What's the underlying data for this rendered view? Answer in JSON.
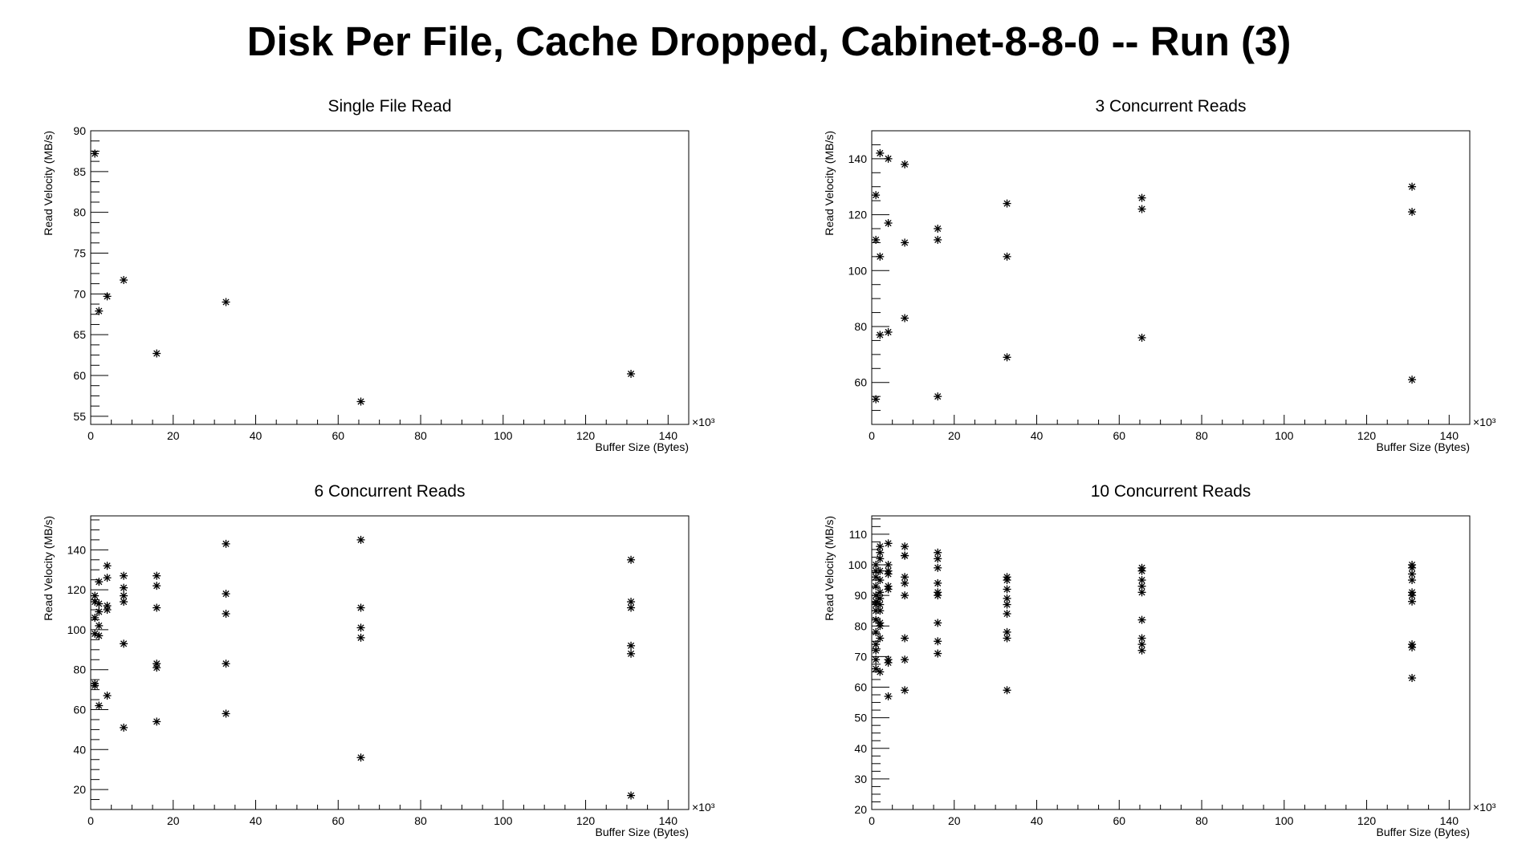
{
  "page": {
    "title": "Disk Per File, Cache Dropped, Cabinet-8-8-0 -- Run (3)"
  },
  "chart_data": [
    {
      "type": "scatter",
      "title": "Single File Read",
      "xlabel": "Buffer Size (Bytes)",
      "ylabel": "Read Velocity (MB/s)",
      "x_multiplier_label": "×10³",
      "xlim": [
        0,
        145
      ],
      "ylim": [
        54,
        90
      ],
      "x_ticks": [
        0,
        20,
        40,
        60,
        80,
        100,
        120,
        140
      ],
      "y_ticks": [
        55,
        60,
        65,
        70,
        75,
        80,
        85,
        90
      ],
      "grid": false,
      "marker": "asterisk",
      "x": [
        1,
        2,
        4,
        8,
        16,
        32.8,
        65.5,
        131
      ],
      "y": [
        87.2,
        67.9,
        69.7,
        71.7,
        62.7,
        69.0,
        56.8,
        60.2
      ]
    },
    {
      "type": "scatter",
      "title": "3 Concurrent Reads",
      "xlabel": "Buffer Size (Bytes)",
      "ylabel": "Read Velocity (MB/s)",
      "x_multiplier_label": "×10³",
      "xlim": [
        0,
        145
      ],
      "ylim": [
        45,
        150
      ],
      "x_ticks": [
        0,
        20,
        40,
        60,
        80,
        100,
        120,
        140
      ],
      "y_ticks": [
        60,
        80,
        100,
        120,
        140
      ],
      "grid": false,
      "marker": "asterisk",
      "x": [
        1,
        1,
        1,
        2,
        2,
        2,
        4,
        4,
        4,
        8,
        8,
        8,
        16,
        16,
        16,
        32.8,
        32.8,
        32.8,
        65.5,
        65.5,
        65.5,
        131,
        131,
        131
      ],
      "y": [
        127,
        111,
        54,
        142,
        105,
        77,
        140,
        117,
        78,
        138,
        110,
        83,
        115,
        111,
        55,
        124,
        105,
        69,
        126,
        122,
        76,
        130,
        121,
        61
      ]
    },
    {
      "type": "scatter",
      "title": "6 Concurrent Reads",
      "xlabel": "Buffer Size (Bytes)",
      "ylabel": "Read Velocity (MB/s)",
      "x_multiplier_label": "×10³",
      "xlim": [
        0,
        145
      ],
      "ylim": [
        10,
        157
      ],
      "x_ticks": [
        0,
        20,
        40,
        60,
        80,
        100,
        120,
        140
      ],
      "y_ticks": [
        20,
        40,
        60,
        80,
        100,
        120,
        140
      ],
      "grid": false,
      "marker": "asterisk",
      "x": [
        1,
        1,
        1,
        1,
        1,
        1,
        2,
        2,
        2,
        2,
        2,
        2,
        4,
        4,
        4,
        4,
        4,
        8,
        8,
        8,
        8,
        8,
        8,
        16,
        16,
        16,
        16,
        16,
        16,
        32.8,
        32.8,
        32.8,
        32.8,
        32.8,
        65.5,
        65.5,
        65.5,
        65.5,
        65.5,
        131,
        131,
        131,
        131,
        131,
        131
      ],
      "y": [
        117,
        114,
        106,
        98,
        72,
        73,
        124,
        113,
        109,
        102,
        97,
        62,
        132,
        126,
        112,
        110,
        67,
        127,
        121,
        117,
        114,
        93,
        51,
        127,
        122,
        111,
        83,
        81,
        54,
        143,
        118,
        108,
        83,
        58,
        145,
        111,
        101,
        96,
        36,
        135,
        114,
        111,
        92,
        88,
        17
      ]
    },
    {
      "type": "scatter",
      "title": "10 Concurrent Reads",
      "xlabel": "Buffer Size (Bytes)",
      "ylabel": "Read Velocity (MB/s)",
      "x_multiplier_label": "×10³",
      "xlim": [
        0,
        145
      ],
      "ylim": [
        20,
        116
      ],
      "x_ticks": [
        0,
        20,
        40,
        60,
        80,
        100,
        120,
        140
      ],
      "y_ticks": [
        20,
        30,
        40,
        50,
        60,
        70,
        80,
        90,
        100,
        110
      ],
      "grid": false,
      "marker": "asterisk",
      "x": [
        1,
        1,
        1,
        1,
        1,
        1,
        1,
        1,
        1,
        1,
        1,
        1,
        1,
        1,
        2,
        2,
        2,
        2,
        2,
        2,
        2,
        2,
        2,
        2,
        2,
        2,
        2,
        4,
        4,
        4,
        4,
        4,
        4,
        4,
        4,
        4,
        8,
        8,
        8,
        8,
        8,
        8,
        8,
        8,
        8,
        16,
        16,
        16,
        16,
        16,
        16,
        16,
        16,
        16,
        32.8,
        32.8,
        32.8,
        32.8,
        32.8,
        32.8,
        32.8,
        32.8,
        32.8,
        65.5,
        65.5,
        65.5,
        65.5,
        65.5,
        65.5,
        65.5,
        65.5,
        65.5,
        131,
        131,
        131,
        131,
        131,
        131,
        131,
        131,
        131,
        131
      ],
      "y": [
        100,
        98,
        96,
        93,
        90,
        88,
        87,
        85,
        82,
        78,
        74,
        72,
        69,
        66,
        106,
        104,
        102,
        98,
        95,
        91,
        89,
        87,
        85,
        81,
        80,
        76,
        65,
        100,
        98,
        97,
        93,
        92,
        69,
        68,
        57,
        107,
        106,
        103,
        96,
        94,
        90,
        76,
        69,
        59,
        103,
        102,
        99,
        94,
        91,
        90,
        81,
        75,
        71,
        104,
        96,
        95,
        92,
        89,
        87,
        84,
        78,
        76,
        59,
        99,
        98,
        95,
        93,
        91,
        82,
        76,
        74,
        72,
        100,
        99,
        97,
        95,
        91,
        90,
        88,
        74,
        73,
        63
      ]
    }
  ]
}
